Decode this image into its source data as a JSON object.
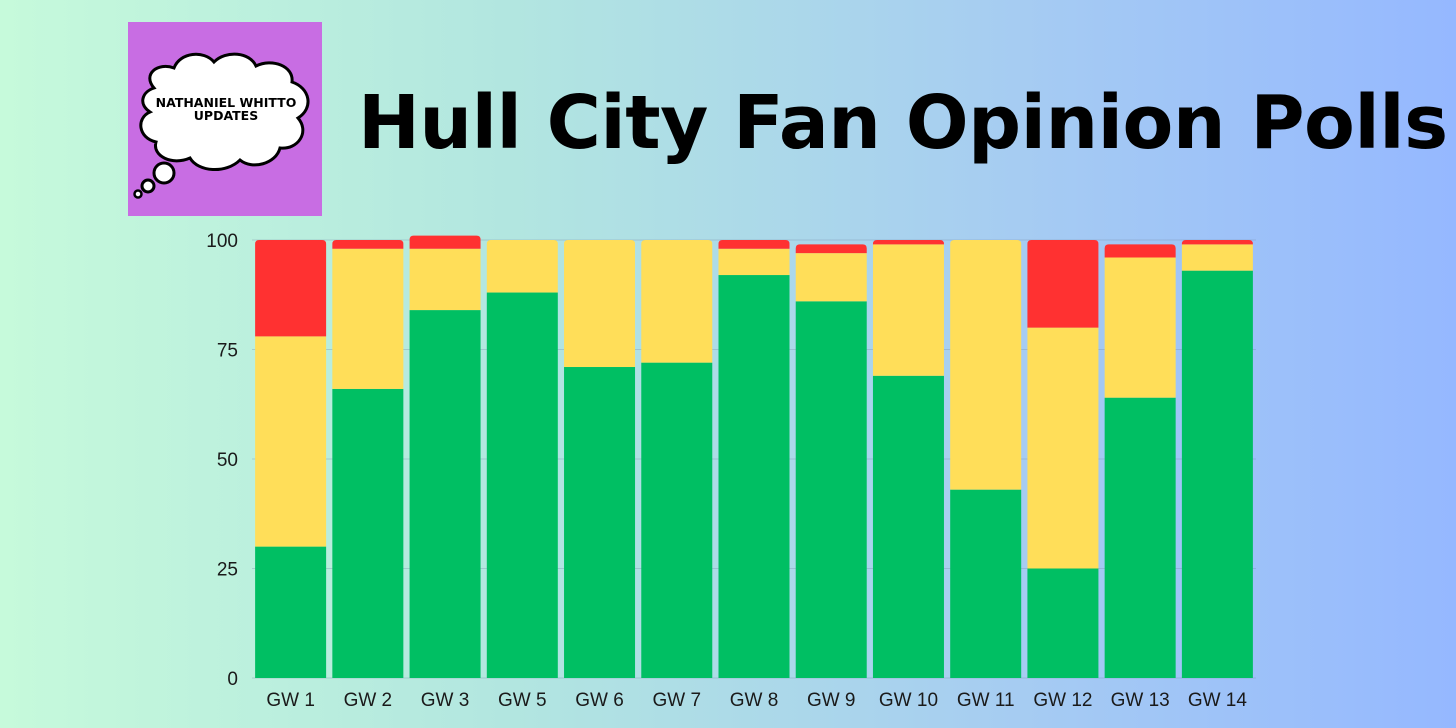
{
  "title": "Hull City Fan Opinion Polls",
  "logo": {
    "line1": "NATHANIEL WHITTO",
    "line2": "UPDATES",
    "background": "#c86de3",
    "icon": "thought-bubble-icon"
  },
  "colors": {
    "green": "#00bf63",
    "yellow": "#ffde59",
    "red": "#ff3131"
  },
  "chart_data": {
    "type": "bar",
    "stacked": true,
    "categories": [
      "GW 1",
      "GW 2",
      "GW 3",
      "GW 5",
      "GW 6",
      "GW 7",
      "GW 8",
      "GW 9",
      "GW 10",
      "GW 11",
      "GW 12",
      "GW 13",
      "GW 14"
    ],
    "series": [
      {
        "color": "#00bf63",
        "values": [
          30,
          66,
          84,
          88,
          71,
          72,
          92,
          86,
          69,
          43,
          25,
          64,
          93
        ]
      },
      {
        "color": "#ffde59",
        "values": [
          48,
          32,
          14,
          12,
          29,
          28,
          6,
          11,
          30,
          57,
          55,
          32,
          6
        ]
      },
      {
        "color": "#ff3131",
        "values": [
          22,
          2,
          3,
          0,
          0,
          0,
          2,
          2,
          1,
          0,
          20,
          3,
          1
        ]
      }
    ],
    "yticks": [
      0,
      25,
      50,
      75,
      100
    ],
    "ylim": [
      0,
      100
    ],
    "grid": true,
    "title": "",
    "xlabel": "",
    "ylabel": ""
  }
}
